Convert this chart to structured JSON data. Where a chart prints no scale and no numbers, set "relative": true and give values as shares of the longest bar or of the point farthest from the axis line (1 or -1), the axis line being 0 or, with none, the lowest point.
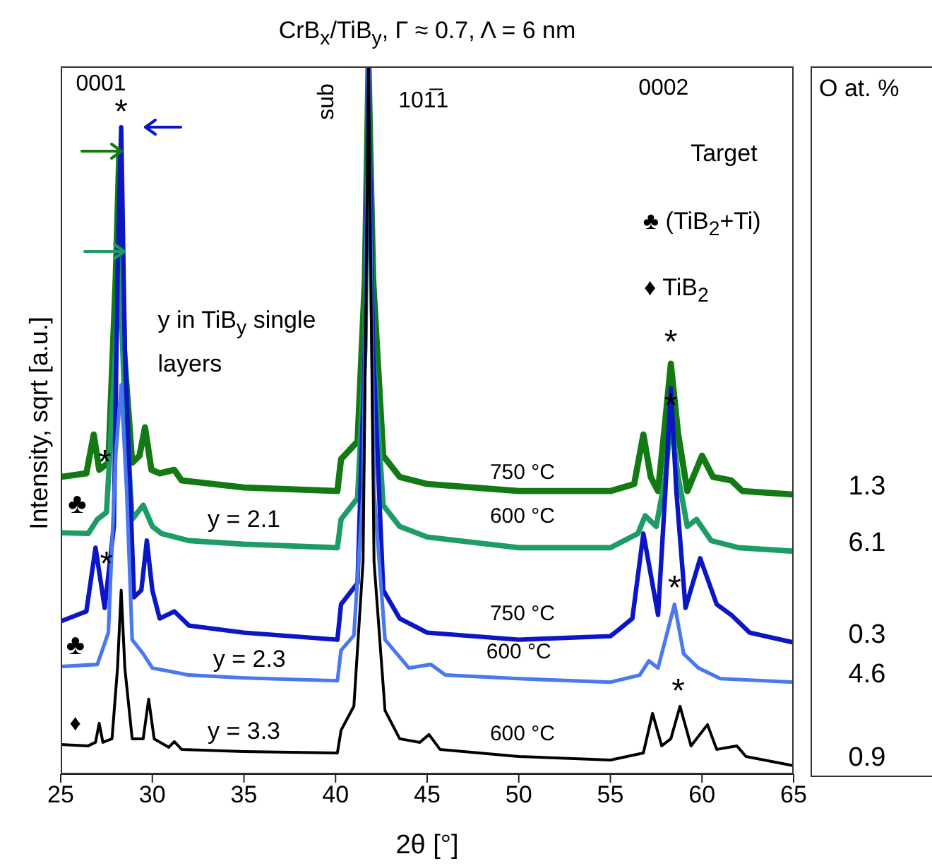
{
  "chart_data": {
    "type": "line",
    "title": "CrB$_{x}$/TiB$_{y}$, Γ ≈ 0.7, Λ = 6 nm",
    "xlabel": "2θ [°]",
    "ylabel": "Intensity, sqrt [a.u.]",
    "relative": true,
    "grid": false,
    "legend": false,
    "xlim": [
      25,
      65
    ],
    "xticks": [
      25,
      30,
      35,
      40,
      45,
      50,
      55,
      60,
      65
    ],
    "series": [
      {
        "color": "#137a13",
        "x": [
          25,
          26.4,
          26.8,
          27.1,
          27.6,
          28.0,
          28.2,
          28.45,
          28.9,
          29.3,
          29.6,
          29.95,
          30.4,
          31.2,
          31.6,
          35,
          40.1,
          40.3,
          41.2,
          41.6,
          41.8,
          42.05,
          42.6,
          43.5,
          45,
          50,
          55,
          56.3,
          56.8,
          57.2,
          57.6,
          58.0,
          58.3,
          58.7,
          59.2,
          60.0,
          60.6,
          61.6,
          62.2,
          65
        ],
        "values": [
          0.42,
          0.425,
          0.48,
          0.43,
          0.44,
          0.7,
          0.88,
          0.6,
          0.44,
          0.45,
          0.49,
          0.43,
          0.425,
          0.43,
          0.415,
          0.405,
          0.4,
          0.445,
          0.47,
          0.7,
          1,
          0.7,
          0.45,
          0.42,
          0.41,
          0.4,
          0.4,
          0.41,
          0.48,
          0.42,
          0.4,
          0.5,
          0.58,
          0.48,
          0.4,
          0.45,
          0.42,
          0.415,
          0.4,
          0.395
        ]
      },
      {
        "color": "#1e9c66",
        "x": [
          25,
          26.5,
          27.0,
          27.5,
          28.0,
          28.2,
          28.45,
          28.9,
          29.5,
          30.0,
          30.5,
          32,
          35,
          40.1,
          40.3,
          41.2,
          41.6,
          41.8,
          42.05,
          42.6,
          43.5,
          45,
          50,
          55,
          56.5,
          56.9,
          57.5,
          58.0,
          58.3,
          58.7,
          59.2,
          59.7,
          60.5,
          62,
          65
        ],
        "values": [
          0.341,
          0.34,
          0.36,
          0.37,
          0.6,
          0.74,
          0.55,
          0.36,
          0.38,
          0.35,
          0.34,
          0.33,
          0.325,
          0.32,
          0.36,
          0.39,
          0.6,
          1,
          0.6,
          0.38,
          0.35,
          0.335,
          0.32,
          0.32,
          0.34,
          0.365,
          0.35,
          0.42,
          0.5,
          0.42,
          0.35,
          0.36,
          0.33,
          0.32,
          0.315
        ]
      },
      {
        "color": "#0c16c4",
        "x": [
          25,
          26.4,
          26.9,
          27.4,
          27.9,
          28.1,
          28.3,
          28.5,
          29.0,
          29.4,
          29.7,
          30.0,
          30.4,
          31.2,
          32,
          35,
          40.1,
          40.3,
          41.2,
          41.6,
          41.8,
          42.05,
          42.6,
          43.5,
          45,
          50,
          55,
          55.5,
          56.2,
          56.8,
          57.6,
          58.0,
          58.3,
          58.6,
          59.1,
          59.9,
          60.8,
          61.6,
          62.6,
          65
        ],
        "values": [
          0.216,
          0.23,
          0.32,
          0.235,
          0.35,
          0.7,
          0.914,
          0.6,
          0.25,
          0.26,
          0.33,
          0.26,
          0.22,
          0.23,
          0.21,
          0.2,
          0.19,
          0.24,
          0.27,
          0.6,
          1,
          0.6,
          0.26,
          0.22,
          0.2,
          0.19,
          0.195,
          0.205,
          0.22,
          0.34,
          0.225,
          0.4,
          0.545,
          0.4,
          0.235,
          0.305,
          0.24,
          0.225,
          0.2,
          0.186
        ]
      },
      {
        "color": "#4a78ee",
        "x": [
          25,
          27,
          27.6,
          28.0,
          28.3,
          28.6,
          28.9,
          29.5,
          30,
          32,
          35,
          40.1,
          40.3,
          41.0,
          41.5,
          41.8,
          42.1,
          42.7,
          44,
          45.2,
          46,
          50,
          55,
          56.6,
          57.1,
          57.6,
          58.0,
          58.5,
          59.0,
          59.8,
          61,
          65
        ],
        "values": [
          0.152,
          0.155,
          0.2,
          0.45,
          0.55,
          0.4,
          0.19,
          0.17,
          0.15,
          0.14,
          0.136,
          0.132,
          0.175,
          0.196,
          0.4,
          1,
          0.4,
          0.19,
          0.15,
          0.155,
          0.14,
          0.135,
          0.13,
          0.14,
          0.16,
          0.15,
          0.19,
          0.24,
          0.17,
          0.15,
          0.135,
          0.13
        ]
      },
      {
        "color": "#000000",
        "x": [
          25,
          26.5,
          26.9,
          27.1,
          27.3,
          27.8,
          28.1,
          28.3,
          28.5,
          28.9,
          29.5,
          29.8,
          30.1,
          30.9,
          31.2,
          31.6,
          35,
          40.1,
          40.3,
          41.0,
          41.5,
          41.8,
          42.1,
          42.7,
          43.5,
          44.6,
          45.1,
          45.7,
          50,
          55,
          56.8,
          57.3,
          57.8,
          58.3,
          58.8,
          59.4,
          60.3,
          60.8,
          61.9,
          62.4,
          65
        ],
        "values": [
          0.042,
          0.04,
          0.045,
          0.072,
          0.045,
          0.05,
          0.15,
          0.26,
          0.15,
          0.05,
          0.05,
          0.106,
          0.05,
          0.038,
          0.046,
          0.035,
          0.032,
          0.03,
          0.062,
          0.096,
          0.3,
          1,
          0.3,
          0.09,
          0.05,
          0.045,
          0.056,
          0.035,
          0.025,
          0.02,
          0.03,
          0.086,
          0.04,
          0.05,
          0.096,
          0.04,
          0.07,
          0.035,
          0.04,
          0.025,
          0.012
        ]
      }
    ],
    "annotations": [
      "0001",
      "sub",
      "101̅1",
      "0002",
      "*",
      "*",
      "*",
      "*",
      "*",
      "*",
      "*",
      "♣",
      "♣",
      "♦",
      "y = 2.1",
      "y = 2.3",
      "y = 3.3",
      "750 °C",
      "600 °C",
      "750 °C",
      "600 °C",
      "600 °C",
      "Target",
      "♣ (TiB$_{2}$+Ti)",
      "♦ TiB$_{2}$",
      "y in TiB$_{y}$ single layers",
      "O at. %",
      "1.3",
      "6.1",
      "0.3",
      "4.6",
      "0.9"
    ]
  }
}
